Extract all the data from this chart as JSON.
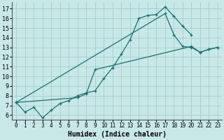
{
  "xlabel": "Humidex (Indice chaleur)",
  "bg_color": "#c8e8e8",
  "line_color": "#1a7070",
  "grid_color": "#a8d0d0",
  "xlim": [
    -0.5,
    23.5
  ],
  "ylim": [
    5.5,
    17.7
  ],
  "xticks": [
    0,
    1,
    2,
    3,
    4,
    5,
    6,
    7,
    8,
    9,
    10,
    11,
    12,
    13,
    14,
    15,
    16,
    17,
    18,
    19,
    20,
    21,
    22,
    23
  ],
  "yticks": [
    6,
    7,
    8,
    9,
    10,
    11,
    12,
    13,
    14,
    15,
    16,
    17
  ],
  "line1_x": [
    0,
    1,
    2,
    3,
    4,
    5,
    6,
    7,
    8,
    9,
    10,
    11,
    12,
    13,
    14,
    15,
    16,
    17,
    18,
    19,
    20
  ],
  "line1_y": [
    7.3,
    6.3,
    6.8,
    5.7,
    6.5,
    7.2,
    7.5,
    8.0,
    8.3,
    8.5,
    9.8,
    10.9,
    12.3,
    13.8,
    16.0,
    16.3,
    16.4,
    17.2,
    16.2,
    15.2,
    14.3
  ],
  "line2_x": [
    0,
    7,
    8,
    9,
    20,
    21,
    22,
    23
  ],
  "line2_y": [
    7.3,
    7.8,
    8.2,
    10.7,
    13.1,
    12.5,
    12.8,
    13.0
  ],
  "line3_x": [
    0,
    17,
    18,
    19,
    20,
    21,
    22,
    23
  ],
  "line3_y": [
    7.3,
    16.5,
    14.3,
    13.1,
    13.0,
    12.5,
    12.8,
    13.0
  ],
  "xlabel_fontsize": 7,
  "tick_fontsize": 5.5
}
